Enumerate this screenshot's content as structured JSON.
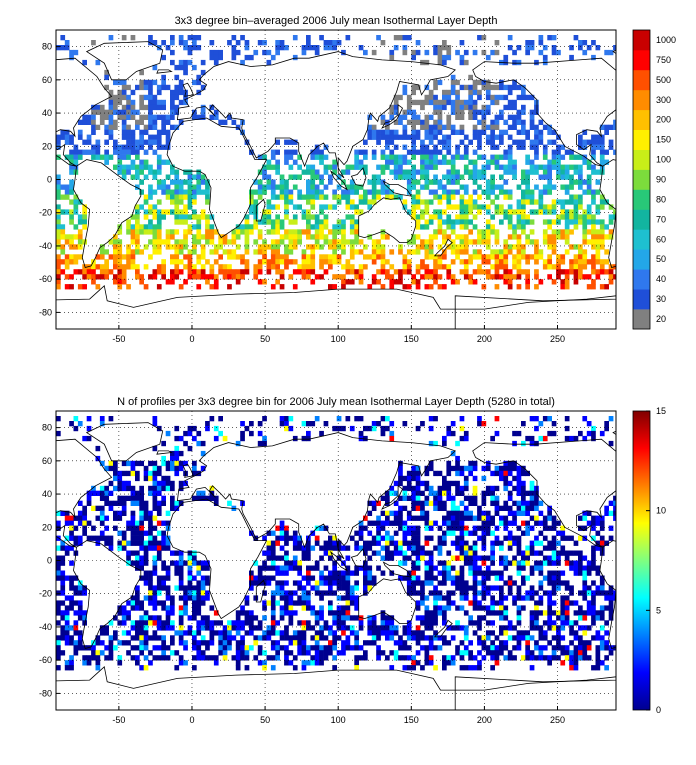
{
  "chart_data": [
    {
      "type": "heatmap",
      "title": "3x3 degree bin–averaged 2006 July mean Isothermal Layer Depth",
      "xlim": [
        -93,
        290
      ],
      "ylim": [
        -90,
        90
      ],
      "x_ticks": [
        -50,
        0,
        50,
        100,
        150,
        200,
        250
      ],
      "y_ticks": [
        -80,
        -60,
        -40,
        -20,
        0,
        20,
        40,
        60,
        80
      ],
      "grid": true,
      "colorbar": {
        "type": "discrete",
        "labels": [
          "20",
          "30",
          "40",
          "50",
          "60",
          "70",
          "80",
          "90",
          "100",
          "150",
          "200",
          "300",
          "500",
          "750",
          "1000"
        ],
        "colors": [
          "#808080",
          "#1f4fd8",
          "#2f78ee",
          "#23a7e8",
          "#1ec0d0",
          "#12b5a0",
          "#28c878",
          "#7cdc3c",
          "#c8ee18",
          "#fff000",
          "#ffc000",
          "#ff8c00",
          "#ff5000",
          "#ff0000",
          "#c80000"
        ]
      },
      "land_outline": "world coastlines",
      "note": "bins are 3x3 degree squares; missing bins are blank"
    },
    {
      "type": "heatmap",
      "title": "N of profiles per 3x3 degree bin for 2006 July mean Isothermal Layer Depth  (5280 in total)",
      "xlim": [
        -93,
        290
      ],
      "ylim": [
        -90,
        90
      ],
      "x_ticks": [
        -50,
        0,
        50,
        100,
        150,
        200,
        250
      ],
      "y_ticks": [
        -80,
        -60,
        -40,
        -20,
        0,
        20,
        40,
        60,
        80
      ],
      "grid": true,
      "colorbar": {
        "type": "continuous",
        "range": [
          0,
          15
        ],
        "ticks": [
          0,
          5,
          10,
          15
        ],
        "colormap": "jet"
      },
      "total_profiles": 5280
    }
  ],
  "colors": {
    "jet": [
      "#00008f",
      "#0000ff",
      "#0080ff",
      "#00ffff",
      "#80ff80",
      "#ffff00",
      "#ff8000",
      "#ff0000",
      "#800000"
    ]
  }
}
